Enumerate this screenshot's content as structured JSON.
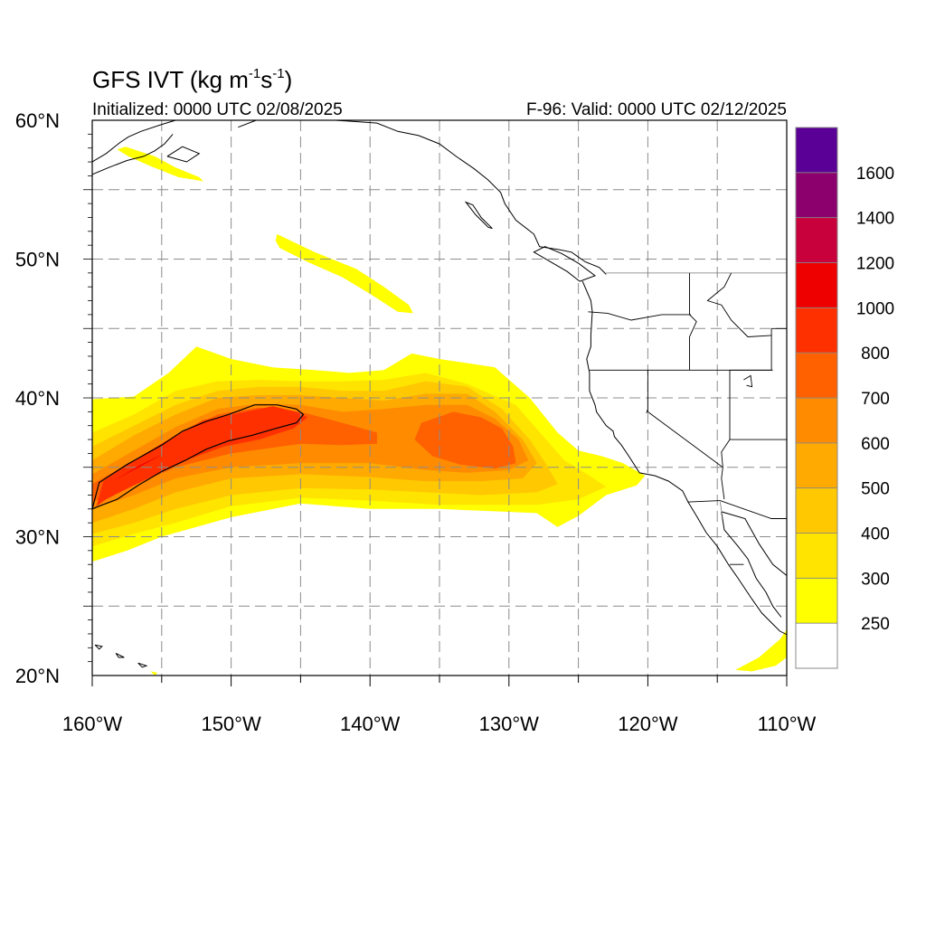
{
  "figure": {
    "title_prefix": "GFS IVT (kg m",
    "title_exp1": "-1",
    "title_mid": "s",
    "title_exp2": "-1",
    "title_suffix": ")",
    "init_label": "Initialized: 0000 UTC 02/08/2025",
    "valid_label": "F-96: Valid: 0000 UTC 02/12/2025"
  },
  "map": {
    "projection": "cylindrical equidistant",
    "lon_range": [
      -160,
      -110
    ],
    "lat_range": [
      20,
      60
    ],
    "grid_lons": [
      -155,
      -150,
      -145,
      -140,
      -135,
      -130,
      -125,
      -120,
      -115
    ],
    "grid_lats": [
      25,
      30,
      35,
      40,
      45,
      50,
      55
    ],
    "grid_style": "dashed gray",
    "x_ticks": [
      {
        "lon": -160,
        "label": "160°W"
      },
      {
        "lon": -150,
        "label": "150°W"
      },
      {
        "lon": -140,
        "label": "140°W"
      },
      {
        "lon": -130,
        "label": "130°W"
      },
      {
        "lon": -120,
        "label": "120°W"
      },
      {
        "lon": -110,
        "label": "110°W"
      }
    ],
    "y_ticks": [
      {
        "lat": 20,
        "label": "20°N"
      },
      {
        "lat": 30,
        "label": "30°N"
      },
      {
        "lat": 40,
        "label": "40°N"
      },
      {
        "lat": 50,
        "label": "50°N"
      },
      {
        "lat": 60,
        "label": "60°N"
      }
    ],
    "contour_value": 800
  },
  "colorbar": {
    "levels": [
      250,
      300,
      400,
      500,
      600,
      700,
      800,
      1000,
      1200,
      1400,
      1600
    ],
    "labels": [
      "250",
      "300",
      "400",
      "500",
      "600",
      "700",
      "800",
      "1000",
      "1200",
      "1400",
      "1600"
    ],
    "colors": [
      "#ffffff",
      "#ffff00",
      "#ffe400",
      "#ffc800",
      "#ffaa00",
      "#ff8c00",
      "#ff6000",
      "#ff3000",
      "#ee0000",
      "#c8003c",
      "#8c006e",
      "#5a0096"
    ]
  },
  "ivt_regions": [
    {
      "name": "main-ar-outer",
      "level": 250,
      "points": [
        [
          -160,
          39.9
        ],
        [
          -157,
          40.1
        ],
        [
          -154.5,
          41.8
        ],
        [
          -152.5,
          43.7
        ],
        [
          -150,
          42.8
        ],
        [
          -147,
          42.2
        ],
        [
          -144,
          42
        ],
        [
          -141.5,
          41.8
        ],
        [
          -139,
          42
        ],
        [
          -137,
          43.2
        ],
        [
          -135,
          42.8
        ],
        [
          -131,
          42.2
        ],
        [
          -128.5,
          40
        ],
        [
          -126.5,
          37.5
        ],
        [
          -125,
          36.2
        ],
        [
          -123.3,
          35.8
        ],
        [
          -121.8,
          35.3
        ],
        [
          -120.2,
          34.4
        ],
        [
          -120.8,
          33.7
        ],
        [
          -123,
          33
        ],
        [
          -125,
          31.5
        ],
        [
          -126.5,
          30.7
        ],
        [
          -128,
          31.7
        ],
        [
          -135,
          32
        ],
        [
          -140,
          32
        ],
        [
          -145,
          32.4
        ],
        [
          -150,
          31.4
        ],
        [
          -155,
          30
        ],
        [
          -157.5,
          29
        ],
        [
          -160,
          28.2
        ]
      ]
    },
    {
      "name": "main-ar-300",
      "level": 300,
      "points": [
        [
          -160,
          37.5
        ],
        [
          -157,
          38.8
        ],
        [
          -154,
          40.5
        ],
        [
          -151,
          41.2
        ],
        [
          -148,
          41.3
        ],
        [
          -145,
          41.2
        ],
        [
          -142,
          41.2
        ],
        [
          -139,
          41.3
        ],
        [
          -136,
          41.8
        ],
        [
          -133,
          41
        ],
        [
          -129.5,
          39.5
        ],
        [
          -127.5,
          37.2
        ],
        [
          -126,
          35.5
        ],
        [
          -124.2,
          34.4
        ],
        [
          -123,
          33.6
        ],
        [
          -125,
          32.7
        ],
        [
          -128,
          32.3
        ],
        [
          -135,
          32.3
        ],
        [
          -140,
          32.6
        ],
        [
          -145,
          32.8
        ],
        [
          -150,
          32.2
        ],
        [
          -154,
          31
        ],
        [
          -157,
          30.2
        ],
        [
          -160,
          29.3
        ]
      ]
    },
    {
      "name": "main-ar-400",
      "level": 400,
      "points": [
        [
          -160,
          36.5
        ],
        [
          -157,
          38
        ],
        [
          -154,
          39.5
        ],
        [
          -151,
          40.5
        ],
        [
          -148,
          40.8
        ],
        [
          -145,
          40.8
        ],
        [
          -142,
          40.5
        ],
        [
          -139,
          40.5
        ],
        [
          -136,
          41.2
        ],
        [
          -133,
          40.8
        ],
        [
          -130.5,
          39.2
        ],
        [
          -128.5,
          37
        ],
        [
          -127.3,
          35.2
        ],
        [
          -126.5,
          33.8
        ],
        [
          -128,
          33.2
        ],
        [
          -132,
          33
        ],
        [
          -136,
          33.2
        ],
        [
          -140,
          33.4
        ],
        [
          -145,
          33.5
        ],
        [
          -150,
          33
        ],
        [
          -154,
          32
        ],
        [
          -157,
          31
        ],
        [
          -160,
          30.2
        ]
      ]
    },
    {
      "name": "main-ar-500",
      "level": 500,
      "points": [
        [
          -160,
          35.5
        ],
        [
          -157,
          37.3
        ],
        [
          -154,
          38.8
        ],
        [
          -151,
          40
        ],
        [
          -148,
          40.2
        ],
        [
          -145,
          40.2
        ],
        [
          -142,
          40
        ],
        [
          -139,
          39.8
        ],
        [
          -136,
          40.3
        ],
        [
          -133,
          40.3
        ],
        [
          -131,
          39
        ],
        [
          -129,
          37
        ],
        [
          -128,
          35.3
        ],
        [
          -129,
          34.2
        ],
        [
          -132,
          34
        ],
        [
          -136,
          34
        ],
        [
          -140,
          34.3
        ],
        [
          -145,
          34.5
        ],
        [
          -150,
          34.2
        ],
        [
          -154,
          33.2
        ],
        [
          -157,
          32
        ],
        [
          -160,
          31
        ]
      ]
    },
    {
      "name": "main-ar-600",
      "level": 600,
      "points": [
        [
          -160,
          34.5
        ],
        [
          -157,
          36.2
        ],
        [
          -154,
          37.9
        ],
        [
          -151,
          39.2
        ],
        [
          -148,
          39.6
        ],
        [
          -145,
          39.5
        ],
        [
          -142,
          39
        ],
        [
          -139,
          39.2
        ],
        [
          -136,
          39.5
        ],
        [
          -133,
          39.5
        ],
        [
          -131,
          38.5
        ],
        [
          -129.3,
          37
        ],
        [
          -128.6,
          35.5
        ],
        [
          -130,
          34.8
        ],
        [
          -133,
          34.6
        ],
        [
          -136,
          34.8
        ],
        [
          -140,
          35.3
        ],
        [
          -145,
          35.3
        ],
        [
          -150,
          35
        ],
        [
          -154,
          34.2
        ],
        [
          -157,
          33
        ],
        [
          -160,
          32
        ]
      ]
    },
    {
      "name": "main-ar-700",
      "level": 700,
      "points": [
        [
          -160,
          33.8
        ],
        [
          -157,
          35.5
        ],
        [
          -154,
          37.3
        ],
        [
          -151,
          38.8
        ],
        [
          -148,
          39.3
        ],
        [
          -145,
          39
        ],
        [
          -142,
          38.2
        ],
        [
          -139.5,
          37.5
        ],
        [
          -139.5,
          36.7
        ],
        [
          -142,
          36.6
        ],
        [
          -145,
          36.7
        ],
        [
          -150,
          36
        ],
        [
          -154,
          35
        ],
        [
          -157,
          33.7
        ],
        [
          -160,
          32.5
        ]
      ]
    },
    {
      "name": "secondary-700",
      "level": 700,
      "points": [
        [
          -136.3,
          38.2
        ],
        [
          -134,
          39
        ],
        [
          -132,
          38.6
        ],
        [
          -130.5,
          37.8
        ],
        [
          -129.7,
          36.5
        ],
        [
          -129.5,
          35.3
        ],
        [
          -131,
          34.9
        ],
        [
          -133.5,
          35.2
        ],
        [
          -135.5,
          35.8
        ],
        [
          -136.8,
          37
        ]
      ]
    },
    {
      "name": "main-ar-800",
      "level": 800,
      "points": [
        [
          -159.2,
          34
        ],
        [
          -157,
          35.5
        ],
        [
          -154,
          37.3
        ],
        [
          -152,
          38.4
        ],
        [
          -149,
          39
        ],
        [
          -147,
          39.4
        ],
        [
          -145.3,
          39
        ],
        [
          -144.5,
          38.6
        ],
        [
          -145.5,
          37.8
        ],
        [
          -148,
          37
        ],
        [
          -150.5,
          36.5
        ],
        [
          -153,
          35.6
        ],
        [
          -156,
          34.2
        ],
        [
          -159,
          32.7
        ],
        [
          -159.7,
          32.2
        ]
      ]
    },
    {
      "name": "inner-core-1000",
      "level": 1000,
      "points": [
        [
          -158.5,
          34
        ],
        [
          -156.5,
          35.2
        ],
        [
          -154.8,
          36
        ]
      ]
    },
    {
      "name": "gulf-alaska-band",
      "level": 250,
      "points": [
        [
          -146.7,
          51.8
        ],
        [
          -144,
          50.5
        ],
        [
          -141,
          49.3
        ],
        [
          -139,
          48
        ],
        [
          -137.2,
          46.7
        ],
        [
          -136.9,
          46.1
        ],
        [
          -138,
          46.2
        ],
        [
          -140,
          47.5
        ],
        [
          -142,
          48.7
        ],
        [
          -144.5,
          49.8
        ],
        [
          -146.5,
          50.8
        ],
        [
          -146.8,
          51.3
        ]
      ]
    },
    {
      "name": "bering-band",
      "level": 250,
      "points": [
        [
          -157.6,
          58.1
        ],
        [
          -155.5,
          57.4
        ],
        [
          -154,
          56.6
        ],
        [
          -152.3,
          55.9
        ],
        [
          -152,
          55.6
        ],
        [
          -153.8,
          55.9
        ],
        [
          -155.8,
          56.7
        ],
        [
          -157.4,
          57.4
        ],
        [
          -158.2,
          57.9
        ]
      ]
    },
    {
      "name": "baja-blob",
      "level": 250,
      "points": [
        [
          -113.7,
          20.4
        ],
        [
          -112,
          21.3
        ],
        [
          -110.5,
          22.6
        ],
        [
          -110,
          23.3
        ],
        [
          -110,
          21.3
        ],
        [
          -110.8,
          20.7
        ],
        [
          -112.5,
          20.3
        ]
      ]
    },
    {
      "name": "hawaii-speck",
      "level": 250,
      "points": [
        [
          -155.8,
          20.3
        ],
        [
          -155.3,
          20.2
        ],
        [
          -155.5,
          20
        ]
      ]
    }
  ],
  "contour_800": [
    [
      -160,
      32
    ],
    [
      -159.5,
      33.9
    ],
    [
      -157.5,
      35.2
    ],
    [
      -155,
      36.6
    ],
    [
      -153.5,
      37.6
    ],
    [
      -151.8,
      38.3
    ],
    [
      -150.2,
      38.8
    ],
    [
      -148.3,
      39.5
    ],
    [
      -146.7,
      39.5
    ],
    [
      -145.3,
      39.2
    ],
    [
      -144.8,
      38.8
    ],
    [
      -145.3,
      38.2
    ],
    [
      -146.8,
      37.8
    ],
    [
      -148.5,
      37.3
    ],
    [
      -150.2,
      36.9
    ],
    [
      -151.8,
      36.3
    ],
    [
      -153.3,
      35.5
    ],
    [
      -155,
      34.7
    ],
    [
      -156.7,
      33.7
    ],
    [
      -158.2,
      32.7
    ],
    [
      -159.5,
      32.2
    ]
  ],
  "us_states_wa_or_ca": [
    [
      -124.7,
      48.4
    ],
    [
      -124,
      46.2
    ],
    [
      -124.1,
      43.7
    ],
    [
      -124.4,
      42
    ],
    [
      -124.2,
      40.5
    ],
    [
      -123.8,
      39
    ],
    [
      -123,
      38
    ],
    [
      -122.4,
      37.2
    ],
    [
      -121.9,
      36.6
    ],
    [
      -121.3,
      35.7
    ],
    [
      -120.6,
      34.6
    ],
    [
      -119.5,
      34.4
    ],
    [
      -118.5,
      34
    ],
    [
      -117.5,
      33.3
    ],
    [
      -117.1,
      32.5
    ]
  ]
}
